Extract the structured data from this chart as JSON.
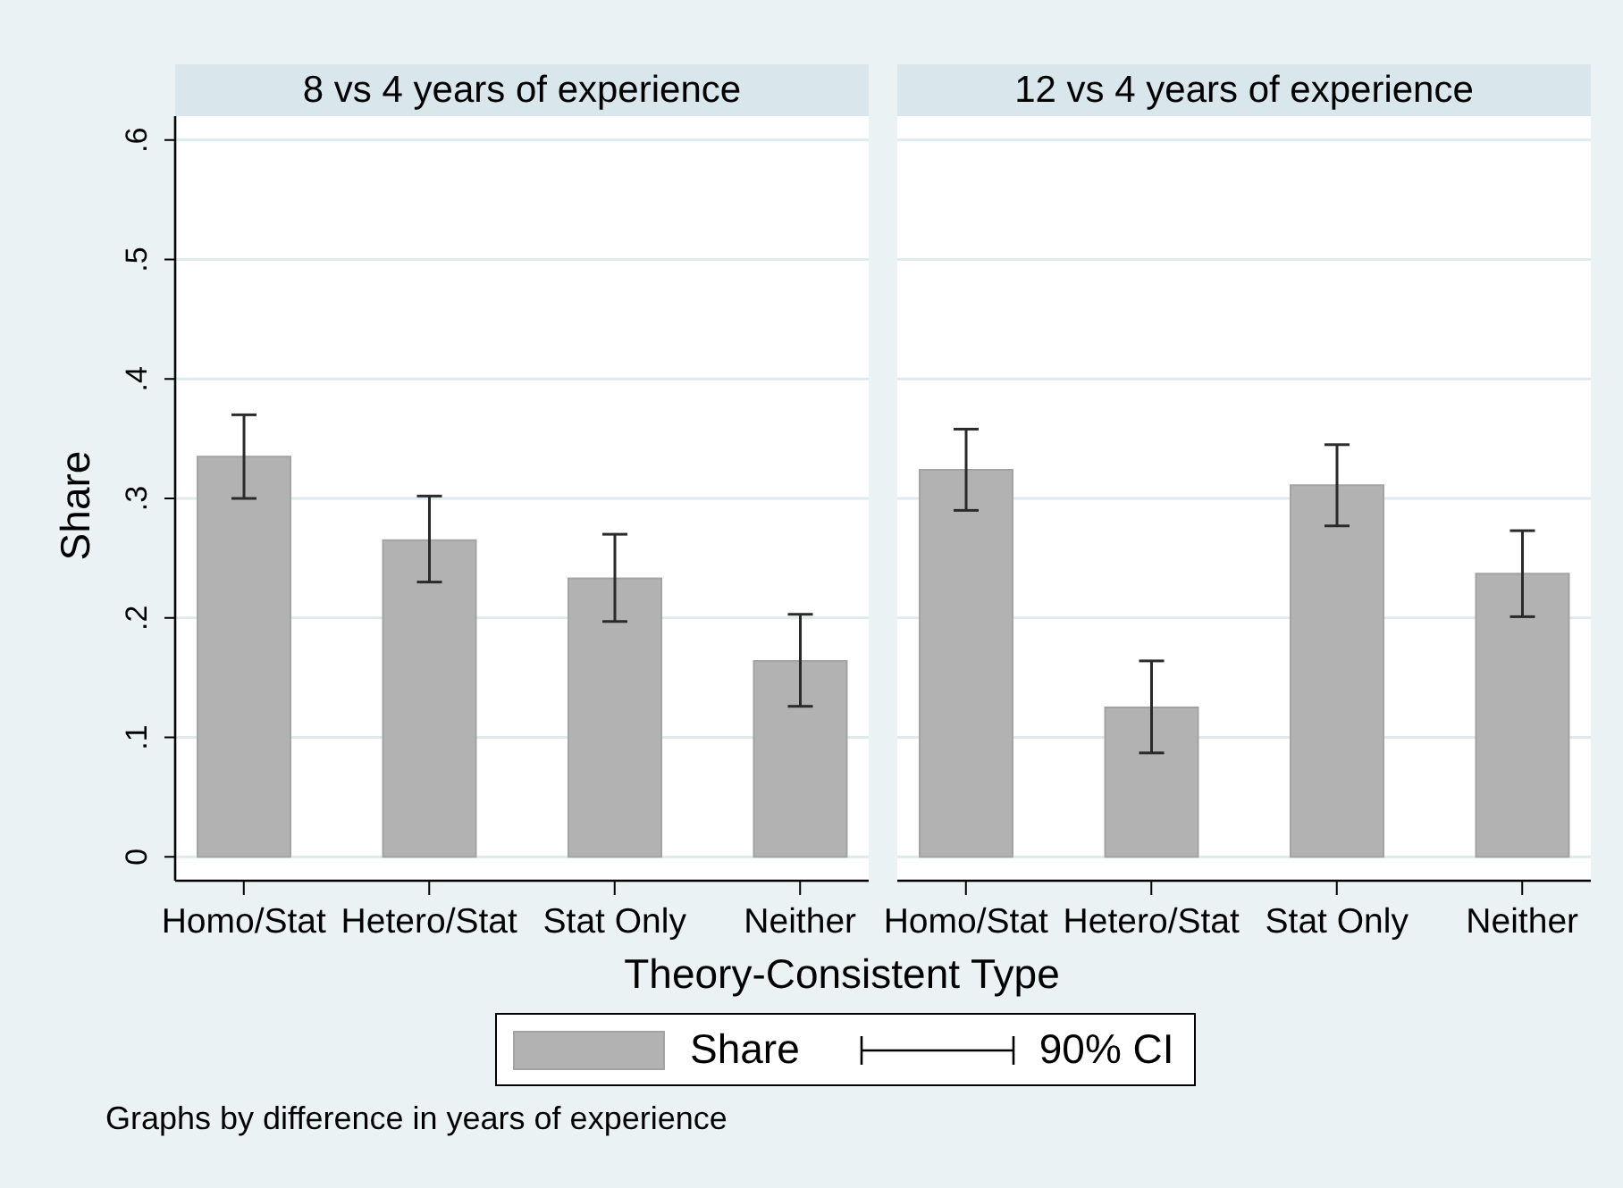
{
  "chart_data": [
    {
      "type": "bar",
      "title": "8 vs 4 years of experience",
      "categories": [
        "Homo/Stat",
        "Hetero/Stat",
        "Stat Only",
        "Neither"
      ],
      "series": [
        {
          "name": "Share",
          "color": "#b2b2b2",
          "values": [
            0.335,
            0.265,
            0.233,
            0.164
          ],
          "errors": [
            [
              0.3,
              0.37
            ],
            [
              0.23,
              0.302
            ],
            [
              0.197,
              0.27
            ],
            [
              0.126,
              0.203
            ]
          ]
        }
      ],
      "xlabel": "Theory-Consistent Type",
      "ylabel": "Share",
      "ylim": [
        -0.02,
        0.62
      ],
      "yticks": [
        0,
        {
          "value": 0.1,
          "label": ".1"
        },
        {
          "value": 0.2,
          "label": ".2"
        },
        {
          "value": 0.3,
          "label": ".3"
        },
        {
          "value": 0.4,
          "label": ".4"
        },
        {
          "value": 0.5,
          "label": ".5"
        },
        {
          "value": 0.6,
          "label": ".6"
        }
      ],
      "grid": "y",
      "legend": "bottom",
      "annotations": [
        "90% CI",
        "Graphs by difference in years of experience"
      ]
    },
    {
      "type": "bar",
      "title": "12 vs 4 years of experience",
      "categories": [
        "Homo/Stat",
        "Hetero/Stat",
        "Stat Only",
        "Neither"
      ],
      "series": [
        {
          "color": "#b2b2b2",
          "values": [
            0.324,
            0.125,
            0.311,
            0.237
          ],
          "errors": [
            [
              0.29,
              0.358
            ],
            [
              0.087,
              0.164
            ],
            [
              0.277,
              0.345
            ],
            [
              0.201,
              0.273
            ]
          ]
        }
      ],
      "ylim": [
        -0.02,
        0.62
      ],
      "yticks": [
        0,
        0.1,
        0.2,
        0.3,
        0.4,
        0.5,
        0.6
      ],
      "grid": "y",
      "tick_labels": "x"
    }
  ]
}
